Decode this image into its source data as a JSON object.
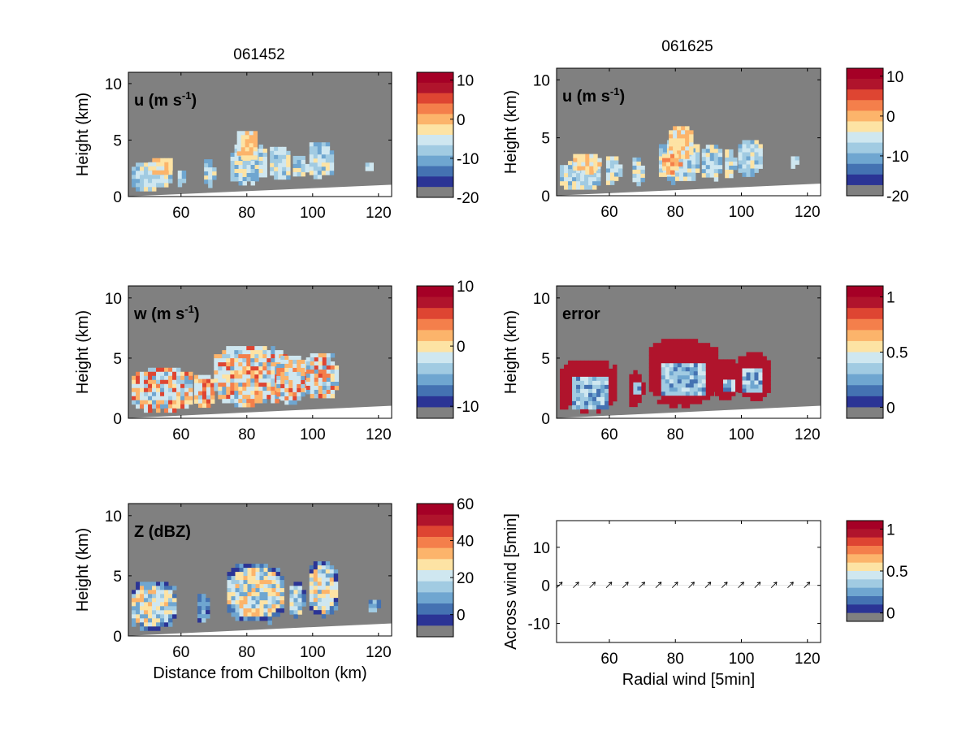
{
  "figure": {
    "col_titles": [
      "061452",
      "061625"
    ]
  },
  "colors": {
    "background": "#808080",
    "ground": "#ffffff",
    "palette": [
      "#2b3495",
      "#4472b2",
      "#6fa6d0",
      "#a1cbe2",
      "#cfe7f0",
      "#fde3a4",
      "#fcb46b",
      "#f47f4b",
      "#de4532",
      "#b0142c",
      "#a50026"
    ]
  },
  "chart_data": [
    {
      "type": "heatmap",
      "panel": "u",
      "title": "061452",
      "label": "u (m s-1)",
      "label_main": "u (m s",
      "label_sup": "-1",
      "label_tail": ")",
      "ylabel": "Height (km)",
      "xlabel": "",
      "xlim": [
        44,
        124
      ],
      "ylim": [
        0,
        11
      ],
      "xticks": [
        60,
        80,
        100,
        120
      ],
      "yticks": [
        0,
        5,
        10
      ],
      "colorbar": {
        "ticks": [
          10,
          0,
          -10,
          -20
        ],
        "range": [
          -20,
          12
        ]
      },
      "echoes": [
        {
          "x0": 45,
          "x1": 57,
          "y0": 0.6,
          "y1": 3.0,
          "v": "cool"
        },
        {
          "x0": 50,
          "x1": 57,
          "y0": 2.0,
          "y1": 3.4,
          "v": "warm"
        },
        {
          "x0": 59,
          "x1": 61,
          "y0": 1.0,
          "y1": 2.3,
          "v": "cool"
        },
        {
          "x0": 67,
          "x1": 70,
          "y0": 1.0,
          "y1": 3.3,
          "v": "cool"
        },
        {
          "x0": 75,
          "x1": 86,
          "y0": 1.2,
          "y1": 4.6,
          "v": "cool"
        },
        {
          "x0": 77,
          "x1": 83,
          "y0": 3.2,
          "y1": 5.8,
          "v": "warm"
        },
        {
          "x0": 87,
          "x1": 93,
          "y0": 1.5,
          "y1": 4.4,
          "v": "cool"
        },
        {
          "x0": 94,
          "x1": 98,
          "y0": 1.7,
          "y1": 3.6,
          "v": "cool"
        },
        {
          "x0": 99,
          "x1": 106,
          "y0": 1.7,
          "y1": 4.8,
          "v": "cool"
        },
        {
          "x0": 116,
          "x1": 118,
          "y0": 2.2,
          "y1": 3.0,
          "v": "neutral"
        }
      ]
    },
    {
      "type": "heatmap",
      "panel": "u",
      "title": "061625",
      "label": "u (m s-1)",
      "label_main": "u (m s",
      "label_sup": "-1",
      "label_tail": ")",
      "ylabel": "Height (km)",
      "xlabel": "",
      "xlim": [
        44,
        124
      ],
      "ylim": [
        0,
        11
      ],
      "xticks": [
        60,
        80,
        100,
        120
      ],
      "yticks": [
        0,
        5,
        10
      ],
      "colorbar": {
        "ticks": [
          10,
          0,
          -10,
          -20
        ],
        "range": [
          -20,
          12
        ]
      },
      "echoes": [
        {
          "x0": 45,
          "x1": 57,
          "y0": 0.6,
          "y1": 3.0,
          "v": "cool"
        },
        {
          "x0": 49,
          "x1": 57,
          "y0": 2.0,
          "y1": 3.6,
          "v": "warm"
        },
        {
          "x0": 59,
          "x1": 63,
          "y0": 1.0,
          "y1": 3.4,
          "v": "cool"
        },
        {
          "x0": 67,
          "x1": 70,
          "y0": 1.0,
          "y1": 3.3,
          "v": "cool"
        },
        {
          "x0": 75,
          "x1": 87,
          "y0": 1.2,
          "y1": 4.8,
          "v": "cool"
        },
        {
          "x0": 78,
          "x1": 85,
          "y0": 3.2,
          "y1": 6.0,
          "v": "warm"
        },
        {
          "x0": 88,
          "x1": 94,
          "y0": 1.5,
          "y1": 4.4,
          "v": "cool"
        },
        {
          "x0": 95,
          "x1": 98,
          "y0": 1.7,
          "y1": 4.0,
          "v": "cool"
        },
        {
          "x0": 99,
          "x1": 106,
          "y0": 1.8,
          "y1": 4.8,
          "v": "cool"
        },
        {
          "x0": 115,
          "x1": 117,
          "y0": 2.5,
          "y1": 3.4,
          "v": "neutral"
        },
        {
          "x0": 76,
          "x1": 81,
          "y0": 2.0,
          "y1": 3.6,
          "v": "strong-warm"
        }
      ]
    },
    {
      "type": "heatmap",
      "panel": "w",
      "label": "w (m s-1)",
      "label_main": "w (m s",
      "label_sup": "-1",
      "label_tail": ")",
      "ylabel": "Height (km)",
      "xlabel": "",
      "xlim": [
        44,
        124
      ],
      "ylim": [
        0,
        11
      ],
      "xticks": [
        60,
        80,
        100,
        120
      ],
      "yticks": [
        0,
        5,
        10
      ],
      "colorbar": {
        "ticks": [
          10,
          0,
          -10
        ],
        "range": [
          -12,
          10
        ]
      },
      "echoes": [
        {
          "x0": 45,
          "x1": 63,
          "y0": 0.6,
          "y1": 4.2,
          "v": "mixed"
        },
        {
          "x0": 64,
          "x1": 70,
          "y0": 1.0,
          "y1": 3.6,
          "v": "mixed"
        },
        {
          "x0": 70,
          "x1": 91,
          "y0": 1.2,
          "y1": 6.0,
          "v": "mixed"
        },
        {
          "x0": 89,
          "x1": 98,
          "y0": 1.4,
          "y1": 5.2,
          "v": "mixed"
        },
        {
          "x0": 98,
          "x1": 107,
          "y0": 1.6,
          "y1": 5.4,
          "v": "mixed"
        }
      ]
    },
    {
      "type": "heatmap",
      "panel": "error",
      "label": "error",
      "ylabel": "Height (km)",
      "xlabel": "",
      "xlim": [
        44,
        124
      ],
      "ylim": [
        0,
        11
      ],
      "xticks": [
        60,
        80,
        100,
        120
      ],
      "yticks": [
        0,
        5,
        10
      ],
      "colorbar": {
        "ticks": [
          1,
          0.5,
          0
        ],
        "range": [
          -0.1,
          1.1
        ]
      },
      "echoes": [
        {
          "x0": 45,
          "x1": 62,
          "y0": 0.6,
          "y1": 4.8,
          "v": "high",
          "core": [
            48,
            59,
            1.0,
            3.6
          ]
        },
        {
          "x0": 66,
          "x1": 70,
          "y0": 1.0,
          "y1": 4.0,
          "v": "high",
          "core": [
            67,
            69,
            2.2,
            3.0
          ]
        },
        {
          "x0": 72,
          "x1": 92,
          "y0": 1.2,
          "y1": 6.6,
          "v": "high",
          "core": [
            75,
            88,
            2.0,
            4.8
          ]
        },
        {
          "x0": 92,
          "x1": 99,
          "y0": 1.6,
          "y1": 4.9,
          "v": "high",
          "core": [
            94,
            97,
            2.4,
            3.4
          ]
        },
        {
          "x0": 99,
          "x1": 108,
          "y0": 1.7,
          "y1": 5.5,
          "v": "high",
          "core": [
            100,
            106,
            2.4,
            4.2
          ]
        }
      ]
    },
    {
      "type": "heatmap",
      "panel": "Z",
      "label": "Z (dBZ)",
      "ylabel": "Height (km)",
      "xlabel": "Distance from Chilbolton (km)",
      "xlim": [
        44,
        124
      ],
      "ylim": [
        0,
        11
      ],
      "xticks": [
        60,
        80,
        100,
        120
      ],
      "yticks": [
        0,
        5,
        10
      ],
      "colorbar": {
        "ticks": [
          60,
          40,
          20,
          0
        ],
        "range": [
          -12,
          60
        ]
      },
      "echoes": [
        {
          "x0": 45,
          "x1": 58,
          "y0": 0.6,
          "y1": 4.5,
          "v": "strong"
        },
        {
          "x0": 65,
          "x1": 68,
          "y0": 1.0,
          "y1": 3.5,
          "v": "weak"
        },
        {
          "x0": 74,
          "x1": 91,
          "y0": 1.2,
          "y1": 6.0,
          "v": "strong"
        },
        {
          "x0": 93,
          "x1": 97,
          "y0": 1.6,
          "y1": 4.5,
          "v": "medium"
        },
        {
          "x0": 99,
          "x1": 107,
          "y0": 1.7,
          "y1": 6.2,
          "v": "strong"
        },
        {
          "x0": 117,
          "x1": 120,
          "y0": 2.0,
          "y1": 3.0,
          "v": "weak"
        }
      ]
    },
    {
      "type": "scatter",
      "panel": "vectors",
      "xlabel": "Radial wind [5min]",
      "ylabel": "Across wind [5min]",
      "xlim": [
        44,
        124
      ],
      "ylim": [
        -15,
        17
      ],
      "xticks": [
        60,
        80,
        100,
        120
      ],
      "yticks": [
        10,
        0,
        -10
      ],
      "colorbar": {
        "ticks": [
          1,
          0.5,
          0
        ],
        "range": [
          -0.1,
          1.1
        ]
      },
      "arrows_x": [
        45,
        50,
        55,
        60,
        65,
        70,
        75,
        80,
        85,
        90,
        95,
        100,
        105,
        110,
        115,
        120
      ]
    }
  ]
}
